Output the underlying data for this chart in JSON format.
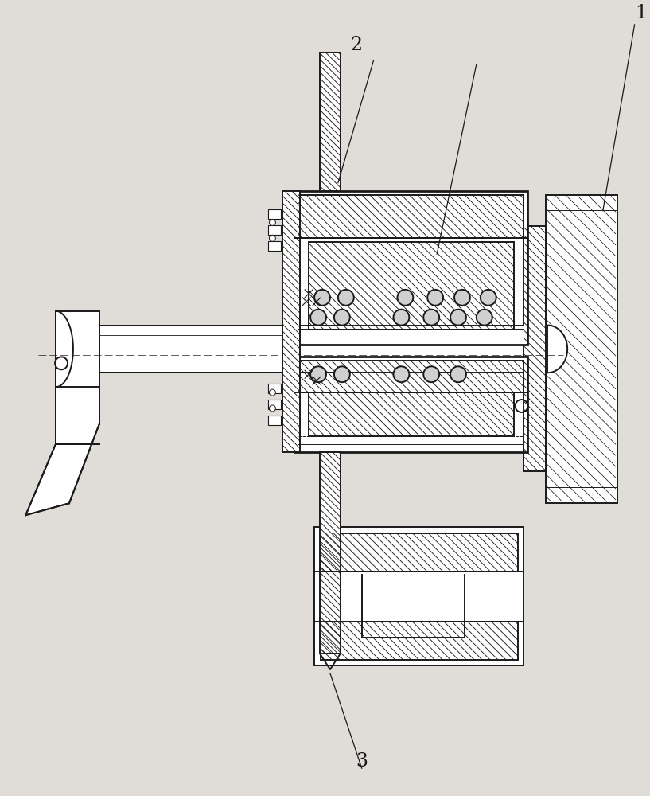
{
  "bg_color": "#e0ddd8",
  "line_color": "#1a1a1a",
  "figsize": [
    8.17,
    10.0
  ],
  "dpi": 100,
  "label_1": "1",
  "label_2": "2",
  "label_3": "3"
}
